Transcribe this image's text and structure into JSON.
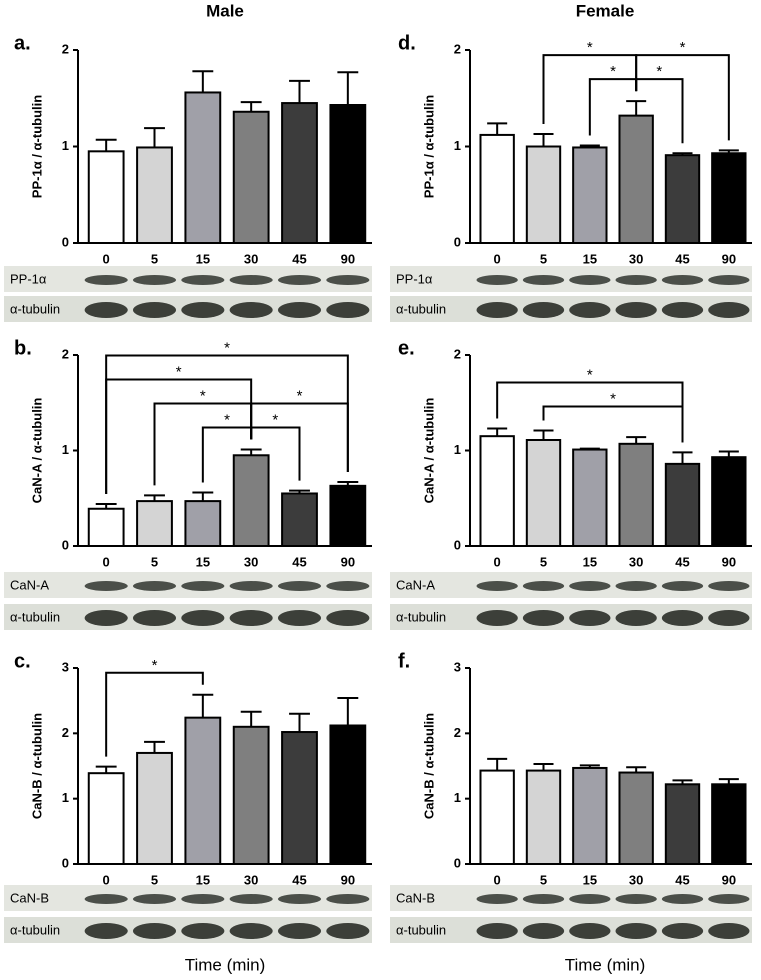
{
  "columns": [
    {
      "title": "Male",
      "xlabel": "Time (min)"
    },
    {
      "title": "Female",
      "xlabel": "Time (min)"
    }
  ],
  "chart_data": [
    {
      "type": "bar",
      "panel": "a.",
      "ylabel": "PP-1α / α-tubulin",
      "categories": [
        "0",
        "5",
        "15",
        "30",
        "45",
        "90"
      ],
      "values": [
        0.95,
        0.99,
        1.56,
        1.36,
        1.45,
        1.43
      ],
      "errors": [
        0.12,
        0.2,
        0.22,
        0.1,
        0.23,
        0.34
      ],
      "colors": [
        "#ffffff",
        "#d4d4d4",
        "#a0a0a8",
        "#7f7f7f",
        "#3c3c3c",
        "#000000"
      ],
      "ylim": [
        0,
        2
      ],
      "yticks": [
        0,
        1,
        2
      ],
      "significance": [],
      "blots": [
        "PP-1α",
        "α-tubulin"
      ]
    },
    {
      "type": "bar",
      "panel": "b.",
      "ylabel": "CaN-A / α-tubulin",
      "categories": [
        "0",
        "5",
        "15",
        "30",
        "45",
        "90"
      ],
      "values": [
        0.39,
        0.47,
        0.47,
        0.95,
        0.55,
        0.63
      ],
      "errors": [
        0.05,
        0.06,
        0.09,
        0.06,
        0.03,
        0.04
      ],
      "colors": [
        "#ffffff",
        "#d4d4d4",
        "#a0a0a8",
        "#7f7f7f",
        "#3c3c3c",
        "#000000"
      ],
      "ylim": [
        0,
        2
      ],
      "yticks": [
        0,
        1,
        2
      ],
      "significance": [
        {
          "from": 2,
          "to": 3,
          "label": "*"
        },
        {
          "from": 3,
          "to": 4,
          "label": "*"
        },
        {
          "from": 1,
          "to": 3,
          "label": "*"
        },
        {
          "from": 3,
          "to": 5,
          "label": "*"
        },
        {
          "from": 0,
          "to": 3,
          "label": "*"
        },
        {
          "from": 0,
          "to": 5,
          "label": "*"
        }
      ],
      "blots": [
        "CaN-A",
        "α-tubulin"
      ]
    },
    {
      "type": "bar",
      "panel": "c.",
      "ylabel": "CaN-B / α-tubulin",
      "categories": [
        "0",
        "5",
        "15",
        "30",
        "45",
        "90"
      ],
      "values": [
        1.39,
        1.7,
        2.24,
        2.1,
        2.02,
        2.12
      ],
      "errors": [
        0.1,
        0.17,
        0.35,
        0.23,
        0.28,
        0.42
      ],
      "colors": [
        "#ffffff",
        "#d4d4d4",
        "#a0a0a8",
        "#7f7f7f",
        "#3c3c3c",
        "#000000"
      ],
      "ylim": [
        0,
        3
      ],
      "yticks": [
        0,
        1,
        2,
        3
      ],
      "significance": [
        {
          "from": 0,
          "to": 2,
          "label": "*"
        }
      ],
      "blots": [
        "CaN-B",
        "α-tubulin"
      ]
    },
    {
      "type": "bar",
      "panel": "d.",
      "ylabel": "PP-1α / α-tubulin",
      "categories": [
        "0",
        "5",
        "15",
        "30",
        "45",
        "90"
      ],
      "values": [
        1.12,
        1.0,
        0.99,
        1.32,
        0.91,
        0.93
      ],
      "errors": [
        0.12,
        0.13,
        0.02,
        0.15,
        0.02,
        0.03
      ],
      "colors": [
        "#ffffff",
        "#d4d4d4",
        "#a0a0a8",
        "#7f7f7f",
        "#3c3c3c",
        "#000000"
      ],
      "ylim": [
        0,
        2
      ],
      "yticks": [
        0,
        1,
        2
      ],
      "significance": [
        {
          "from": 2,
          "to": 3,
          "label": "*"
        },
        {
          "from": 3,
          "to": 4,
          "label": "*"
        },
        {
          "from": 1,
          "to": 3,
          "label": "*"
        },
        {
          "from": 3,
          "to": 5,
          "label": "*"
        }
      ],
      "blots": [
        "PP-1α",
        "α-tubulin"
      ]
    },
    {
      "type": "bar",
      "panel": "e.",
      "ylabel": "CaN-A / α-tubulin",
      "categories": [
        "0",
        "5",
        "15",
        "30",
        "45",
        "90"
      ],
      "values": [
        1.15,
        1.11,
        1.01,
        1.07,
        0.86,
        0.93
      ],
      "errors": [
        0.08,
        0.1,
        0.01,
        0.07,
        0.12,
        0.06
      ],
      "colors": [
        "#ffffff",
        "#d4d4d4",
        "#a0a0a8",
        "#7f7f7f",
        "#3c3c3c",
        "#000000"
      ],
      "ylim": [
        0,
        2
      ],
      "yticks": [
        0,
        1,
        2
      ],
      "significance": [
        {
          "from": 1,
          "to": 4,
          "label": "*"
        },
        {
          "from": 0,
          "to": 4,
          "label": "*"
        }
      ],
      "blots": [
        "CaN-A",
        "α-tubulin"
      ]
    },
    {
      "type": "bar",
      "panel": "f.",
      "ylabel": "CaN-B / α-tubulin",
      "categories": [
        "0",
        "5",
        "15",
        "30",
        "45",
        "90"
      ],
      "values": [
        1.43,
        1.43,
        1.47,
        1.4,
        1.22,
        1.22
      ],
      "errors": [
        0.18,
        0.1,
        0.04,
        0.08,
        0.06,
        0.08
      ],
      "colors": [
        "#ffffff",
        "#d4d4d4",
        "#a0a0a8",
        "#7f7f7f",
        "#3c3c3c",
        "#000000"
      ],
      "ylim": [
        0,
        3
      ],
      "yticks": [
        0,
        1,
        2,
        3
      ],
      "significance": [],
      "blots": [
        "CaN-B",
        "α-tubulin"
      ]
    }
  ]
}
